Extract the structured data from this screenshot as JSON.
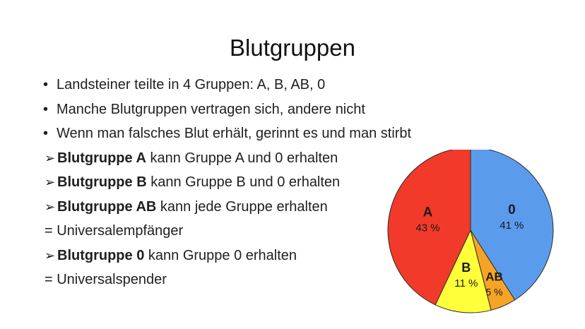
{
  "slide": {
    "title": "Blutgruppen",
    "bullets": [
      "Landsteiner teilte in 4 Gruppen: A, B, AB, 0",
      "Manche Blutgruppen vertragen sich, andere nicht",
      "Wenn man falsches Blut erhält, gerinnt es und man stirbt"
    ],
    "rules": [
      {
        "bold": "Blutgruppe A",
        "rest": " kann Gruppe A und 0 erhalten"
      },
      {
        "bold": "Blutgruppe B",
        "rest": " kann Gruppe B und 0 erhalten"
      },
      {
        "bold": "Blutgruppe AB",
        "rest": " kann jede Gruppe erhalten"
      },
      {
        "bold": "Blutgruppe 0",
        "rest": " kann Gruppe 0 erhalten"
      }
    ],
    "notes": {
      "universal_recipient": "= Universalempfänger",
      "universal_donor": "= Universalspender"
    },
    "bullet_glyph": "•",
    "arrow_glyph": "➢"
  },
  "chart_data": {
    "type": "pie",
    "start": "12 o'clock, clockwise",
    "slices": [
      {
        "label": "0",
        "value": 41,
        "value_label": "41 %",
        "color": "#5b9bec"
      },
      {
        "label": "AB",
        "value": 5,
        "value_label": "5 %",
        "color": "#f7a426"
      },
      {
        "label": "B",
        "value": 11,
        "value_label": "11 %",
        "color": "#ffff3a"
      },
      {
        "label": "A",
        "value": 43,
        "value_label": "43 %",
        "color": "#f23a2a"
      }
    ]
  }
}
